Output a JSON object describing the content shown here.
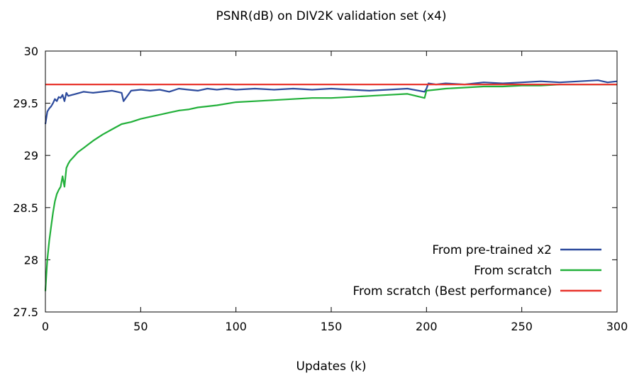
{
  "chart_data": {
    "type": "line",
    "title": "PSNR(dB) on DIV2K validation set (x4)",
    "xlabel": "Updates (k)",
    "ylabel": "",
    "xlim": [
      0,
      300
    ],
    "ylim": [
      27.5,
      30
    ],
    "xticks": [
      0,
      50,
      100,
      150,
      200,
      250,
      300
    ],
    "yticks": [
      27.5,
      28,
      28.5,
      29,
      29.5,
      30
    ],
    "ytick_labels": [
      "27.5",
      "28",
      "28.5",
      "29",
      "29.5",
      "30"
    ],
    "legend_position": "bottom-right",
    "series": [
      {
        "name": "From pre-trained x2",
        "color": "#2c4a9c",
        "x": [
          0,
          1,
          2,
          3,
          4,
          5,
          6,
          7,
          8,
          9,
          10,
          11,
          12,
          14,
          16,
          18,
          20,
          25,
          30,
          35,
          40,
          41,
          45,
          50,
          55,
          60,
          65,
          70,
          75,
          80,
          85,
          90,
          95,
          100,
          110,
          120,
          130,
          140,
          150,
          160,
          170,
          180,
          190,
          199,
          200,
          201,
          205,
          210,
          220,
          230,
          240,
          250,
          260,
          270,
          280,
          290,
          295,
          300
        ],
        "y": [
          29.3,
          29.42,
          29.45,
          29.47,
          29.5,
          29.54,
          29.52,
          29.56,
          29.55,
          29.58,
          29.52,
          29.6,
          29.57,
          29.58,
          29.59,
          29.6,
          29.61,
          29.6,
          29.61,
          29.62,
          29.6,
          29.52,
          29.62,
          29.63,
          29.62,
          29.63,
          29.61,
          29.64,
          29.63,
          29.62,
          29.64,
          29.63,
          29.64,
          29.63,
          29.64,
          29.63,
          29.64,
          29.63,
          29.64,
          29.63,
          29.62,
          29.63,
          29.64,
          29.61,
          29.64,
          29.69,
          29.68,
          29.69,
          29.68,
          29.7,
          29.69,
          29.7,
          29.71,
          29.7,
          29.71,
          29.72,
          29.7,
          29.71
        ]
      },
      {
        "name": "From scratch",
        "color": "#22b03a",
        "x": [
          0,
          0.5,
          1,
          2,
          3,
          4,
          5,
          6,
          7,
          8,
          9,
          10,
          11,
          12,
          13,
          15,
          17,
          20,
          25,
          30,
          35,
          40,
          45,
          50,
          55,
          60,
          65,
          70,
          75,
          80,
          90,
          100,
          110,
          120,
          130,
          140,
          150,
          160,
          170,
          180,
          190,
          199,
          200,
          205,
          210,
          220,
          230,
          240,
          250,
          260,
          270,
          280,
          290,
          300
        ],
        "y": [
          27.7,
          27.85,
          28.0,
          28.18,
          28.32,
          28.45,
          28.56,
          28.63,
          28.67,
          28.7,
          28.8,
          28.7,
          28.88,
          28.92,
          28.95,
          28.99,
          29.03,
          29.07,
          29.14,
          29.2,
          29.25,
          29.3,
          29.32,
          29.35,
          29.37,
          29.39,
          29.41,
          29.43,
          29.44,
          29.46,
          29.48,
          29.51,
          29.52,
          29.53,
          29.54,
          29.55,
          29.55,
          29.56,
          29.57,
          29.58,
          29.59,
          29.55,
          29.62,
          29.63,
          29.64,
          29.65,
          29.66,
          29.66,
          29.67,
          29.67,
          29.68,
          29.68,
          29.68,
          29.68
        ]
      },
      {
        "name": "From scratch (Best performance)",
        "color": "#e8342c",
        "x": [
          0,
          300
        ],
        "y": [
          29.68,
          29.68
        ]
      }
    ]
  }
}
